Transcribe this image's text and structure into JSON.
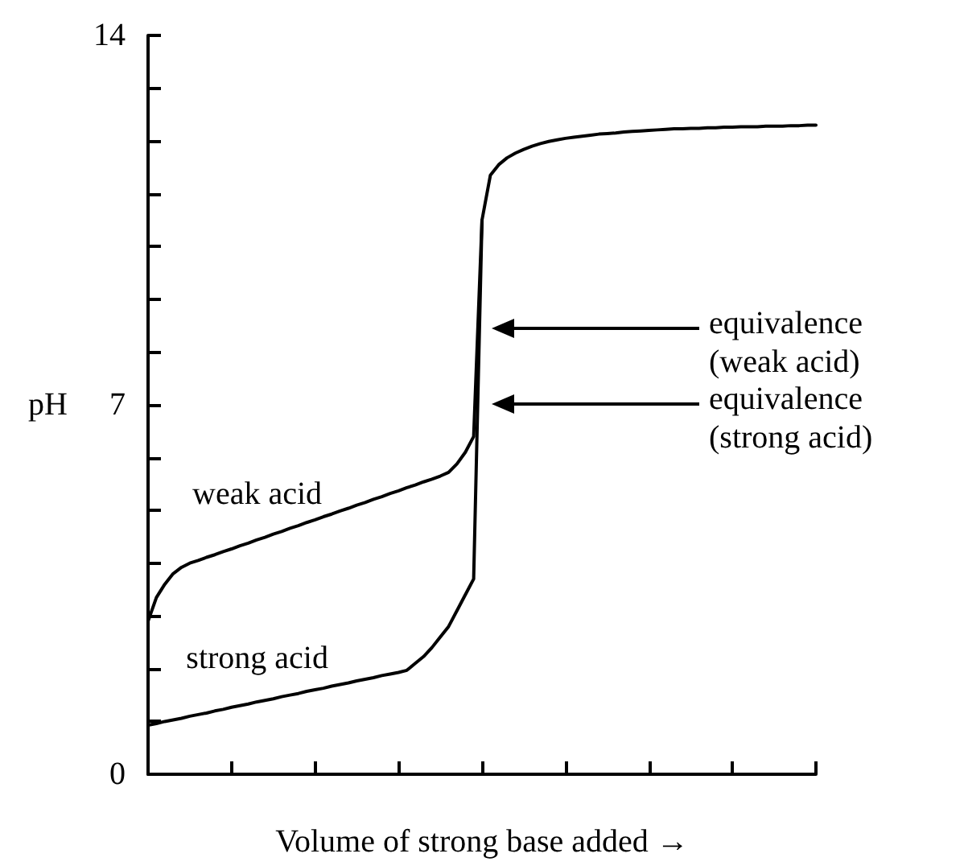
{
  "chart_data": {
    "type": "line",
    "xlabel": "Volume of strong base added →",
    "ylabel": "pH",
    "categories": [
      null,
      null,
      null,
      null,
      null,
      null,
      null,
      null,
      null,
      null,
      null,
      null,
      null,
      null,
      null,
      null,
      null,
      null,
      null,
      null,
      null,
      null,
      null,
      null,
      null,
      null,
      null,
      null,
      null,
      null,
      null,
      null,
      null,
      null,
      null,
      null,
      null,
      null,
      null,
      null,
      null,
      null,
      null,
      null,
      null,
      null,
      null,
      null,
      null,
      null,
      null,
      null,
      null,
      null,
      null,
      null,
      null,
      null,
      null,
      null,
      null,
      null,
      null,
      null,
      null,
      null,
      null,
      null,
      null,
      null,
      null,
      null,
      null,
      null,
      null,
      null,
      null,
      null,
      null,
      null,
      null
    ],
    "ylim": [
      0,
      14
    ],
    "yticks": [
      0,
      {
        "value": 1,
        "label": null
      },
      {
        "value": 2,
        "label": null
      },
      {
        "value": 3,
        "label": null
      },
      {
        "value": 4,
        "label": null
      },
      {
        "value": 5,
        "label": null
      },
      {
        "value": 6,
        "label": null
      },
      7,
      {
        "value": 8,
        "label": null
      },
      {
        "value": 9,
        "label": null
      },
      {
        "value": 10,
        "label": null
      },
      {
        "value": 11,
        "label": null
      },
      {
        "value": 12,
        "label": null
      },
      {
        "value": 13,
        "label": null
      },
      14
    ],
    "series": [
      {
        "name": "weak acid",
        "color": "#000000",
        "values": [
          2.9,
          3.35,
          3.6,
          3.8,
          3.92,
          4.0,
          4.05,
          4.11,
          4.16,
          4.22,
          4.27,
          4.33,
          4.38,
          4.44,
          4.49,
          4.55,
          4.6,
          4.66,
          4.71,
          4.77,
          4.82,
          4.88,
          4.93,
          4.99,
          5.04,
          5.1,
          5.15,
          5.21,
          5.26,
          5.32,
          5.37,
          5.43,
          5.48,
          5.54,
          5.59,
          5.65,
          5.72,
          5.88,
          6.1,
          6.4,
          10.5,
          11.35,
          11.55,
          11.68,
          11.77,
          11.84,
          11.9,
          11.95,
          11.99,
          12.02,
          12.05,
          12.07,
          12.09,
          12.11,
          12.13,
          12.14,
          12.15,
          12.17,
          12.18,
          12.19,
          12.2,
          12.21,
          12.22,
          12.23,
          12.23,
          12.24,
          12.24,
          12.25,
          12.25,
          12.26,
          12.26,
          12.27,
          12.27,
          12.27,
          12.28,
          12.28,
          12.28,
          12.29,
          12.29,
          12.3,
          12.3
        ]
      },
      {
        "name": "strong acid",
        "color": "#000000",
        "values": [
          0.93,
          0.96,
          1.0,
          1.03,
          1.06,
          1.1,
          1.13,
          1.16,
          1.2,
          1.23,
          1.27,
          1.3,
          1.33,
          1.37,
          1.4,
          1.43,
          1.47,
          1.5,
          1.53,
          1.57,
          1.6,
          1.63,
          1.67,
          1.7,
          1.73,
          1.77,
          1.8,
          1.83,
          1.87,
          1.9,
          1.93,
          1.97,
          2.1,
          2.23,
          2.4,
          2.6,
          2.8,
          3.1,
          3.4,
          3.7,
          10.5,
          null,
          null,
          null,
          null,
          null,
          null,
          null,
          null,
          null,
          null,
          null,
          null,
          null,
          null,
          null,
          null,
          null,
          null,
          null,
          null,
          null,
          null,
          null,
          null,
          null,
          null,
          null,
          null,
          null,
          null,
          null,
          null,
          null,
          null,
          null,
          null,
          null,
          null,
          null,
          null
        ]
      }
    ],
    "annotations": [
      "equivalence\n(weak acid)",
      "equivalence\n(strong acid)"
    ],
    "grid": false,
    "legend": false,
    "marker": "none",
    "line_style": "solid"
  }
}
